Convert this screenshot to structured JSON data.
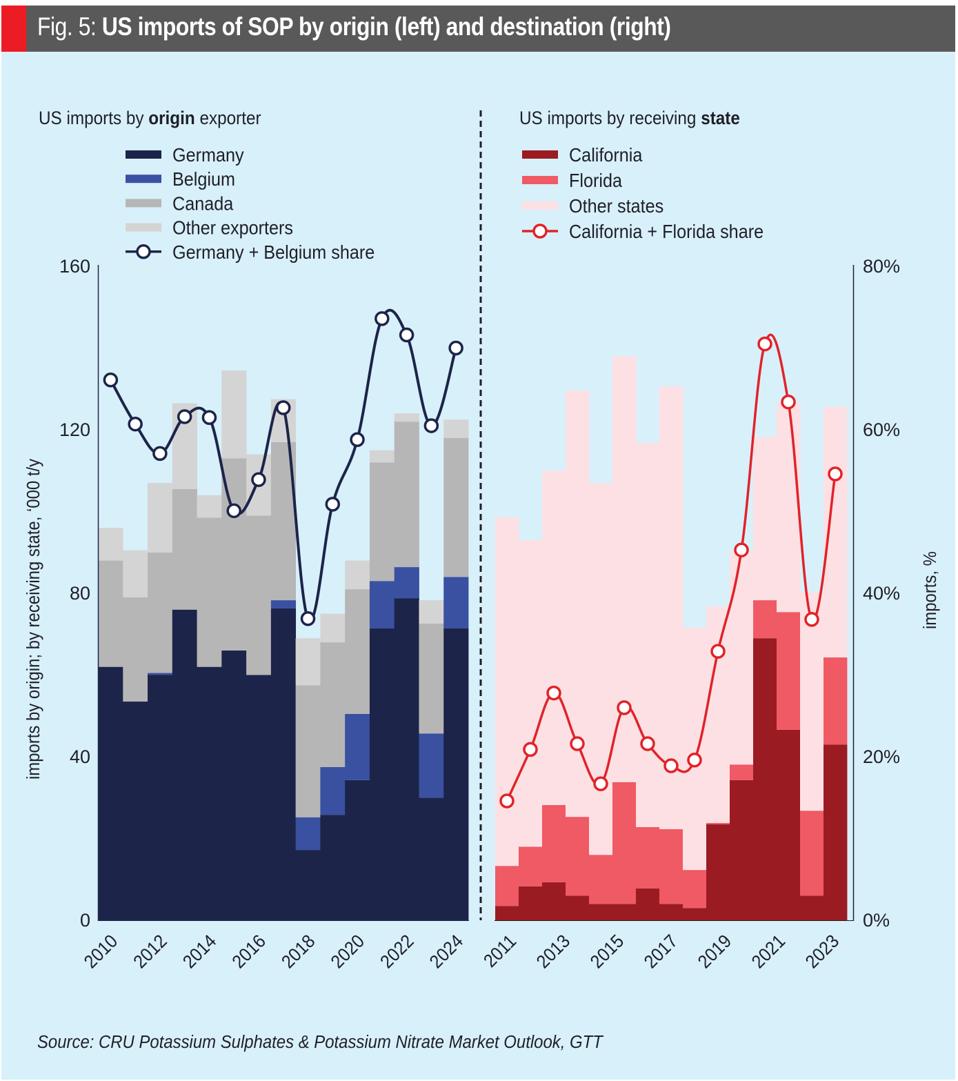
{
  "header": {
    "fig_label": "Fig. 5:",
    "title": "US imports of SOP by origin (left) and destination (right)"
  },
  "source": "Source: CRU Potassium Sulphates & Potassium Nitrate Market Outlook, GTT",
  "colors": {
    "background": "#d8f0fa",
    "germany": "#1c2449",
    "belgium": "#3a50a0",
    "canada": "#b6b6b6",
    "other_exporters": "#d4d4d4",
    "california": "#9b1b22",
    "florida": "#ef5a64",
    "other_states": "#fde0e3",
    "share_left": "#1c2449",
    "share_right": "#e02329"
  },
  "chart_data": [
    {
      "type": "bar",
      "stacked": true,
      "subtitle_prefix": "US imports by ",
      "subtitle_bold": "origin",
      "subtitle_suffix": " exporter",
      "ylabel": "imports by origin; by receiving state, ‘000 t/y",
      "ylim": [
        0,
        160
      ],
      "yticks": [
        "0",
        "40",
        "80",
        "120",
        "160"
      ],
      "y2lim": [
        0,
        80
      ],
      "categories": [
        "2010",
        "2011",
        "2012",
        "2013",
        "2014",
        "2015",
        "2016",
        "2017",
        "2018",
        "2019",
        "2020",
        "2021",
        "2022",
        "2023",
        "2024"
      ],
      "xtick_labels": [
        "2010",
        "2012",
        "2014",
        "2016",
        "2018",
        "2020",
        "2022",
        "2024"
      ],
      "legend_position": "top",
      "series": [
        {
          "name": "Germany",
          "key": "germany",
          "values": [
            62,
            53.5,
            60,
            76,
            62,
            66,
            60,
            76.3,
            17.2,
            25.8,
            34.3,
            71.4,
            78.8,
            30,
            71.4
          ]
        },
        {
          "name": "Belgium",
          "key": "belgium",
          "values": [
            0,
            0,
            0.5,
            0,
            0,
            0,
            0,
            2,
            8,
            11.7,
            16.2,
            11.6,
            7.6,
            15.7,
            12.6
          ]
        },
        {
          "name": "Canada",
          "key": "canada",
          "values": [
            26,
            25.5,
            29.5,
            29.5,
            36.5,
            47,
            39,
            38.7,
            32.3,
            30.5,
            30.5,
            29,
            35.6,
            26.9,
            34
          ]
        },
        {
          "name": "Other exporters",
          "key": "other_exporters",
          "values": [
            8,
            11.5,
            17,
            21,
            5.5,
            21.5,
            15,
            10.5,
            11.5,
            7,
            7,
            3,
            2,
            5.7,
            4.5
          ]
        }
      ],
      "line": {
        "name": "Germany + Belgium share",
        "unit": "%",
        "values": [
          66.1,
          60.7,
          57.1,
          61.6,
          61.5,
          50.1,
          53.9,
          62.7,
          36.9,
          50.9,
          58.8,
          73.6,
          71.6,
          60.5,
          70
        ]
      }
    },
    {
      "type": "bar",
      "stacked": true,
      "subtitle_prefix": "US imports by receiving ",
      "subtitle_bold": "state",
      "subtitle_suffix": "",
      "ylabel": "imports, %",
      "ylim": [
        0,
        160
      ],
      "y2lim": [
        0,
        80
      ],
      "y2ticks": [
        "0%",
        "20%",
        "40%",
        "60%",
        "80%"
      ],
      "categories": [
        "1",
        "2",
        "3",
        "4",
        "5",
        "6",
        "7",
        "8",
        "9",
        "10",
        "11",
        "12",
        "13",
        "14",
        "15"
      ],
      "xtick_labels": [
        "2011",
        "2013",
        "2015",
        "2017",
        "2019",
        "2021",
        "2023"
      ],
      "legend_position": "top",
      "series": [
        {
          "name": "California",
          "key": "california",
          "values": [
            3.5,
            8.3,
            9.3,
            6,
            4,
            4,
            7.8,
            4,
            3,
            23.5,
            34.3,
            69,
            46.6,
            6,
            43
          ]
        },
        {
          "name": "Florida",
          "key": "florida",
          "values": [
            9.8,
            9.7,
            18.9,
            19.3,
            12,
            29.8,
            15,
            18.3,
            9.3,
            0.3,
            3.8,
            9.3,
            28.8,
            20.8,
            21.3
          ]
        },
        {
          "name": "Other states",
          "key": "other_states",
          "values": [
            85.3,
            75,
            81.8,
            104.3,
            91,
            104.2,
            94,
            108.3,
            59.3,
            53,
            52.2,
            40,
            51,
            53.5,
            61.3
          ]
        }
      ],
      "line": {
        "name": "California + Florida share",
        "unit": "%",
        "values": [
          14.6,
          20.9,
          27.8,
          21.6,
          16.7,
          26,
          21.6,
          18.9,
          19.6,
          32.9,
          45.3,
          70.5,
          63.4,
          36.8,
          54.6
        ]
      }
    }
  ]
}
